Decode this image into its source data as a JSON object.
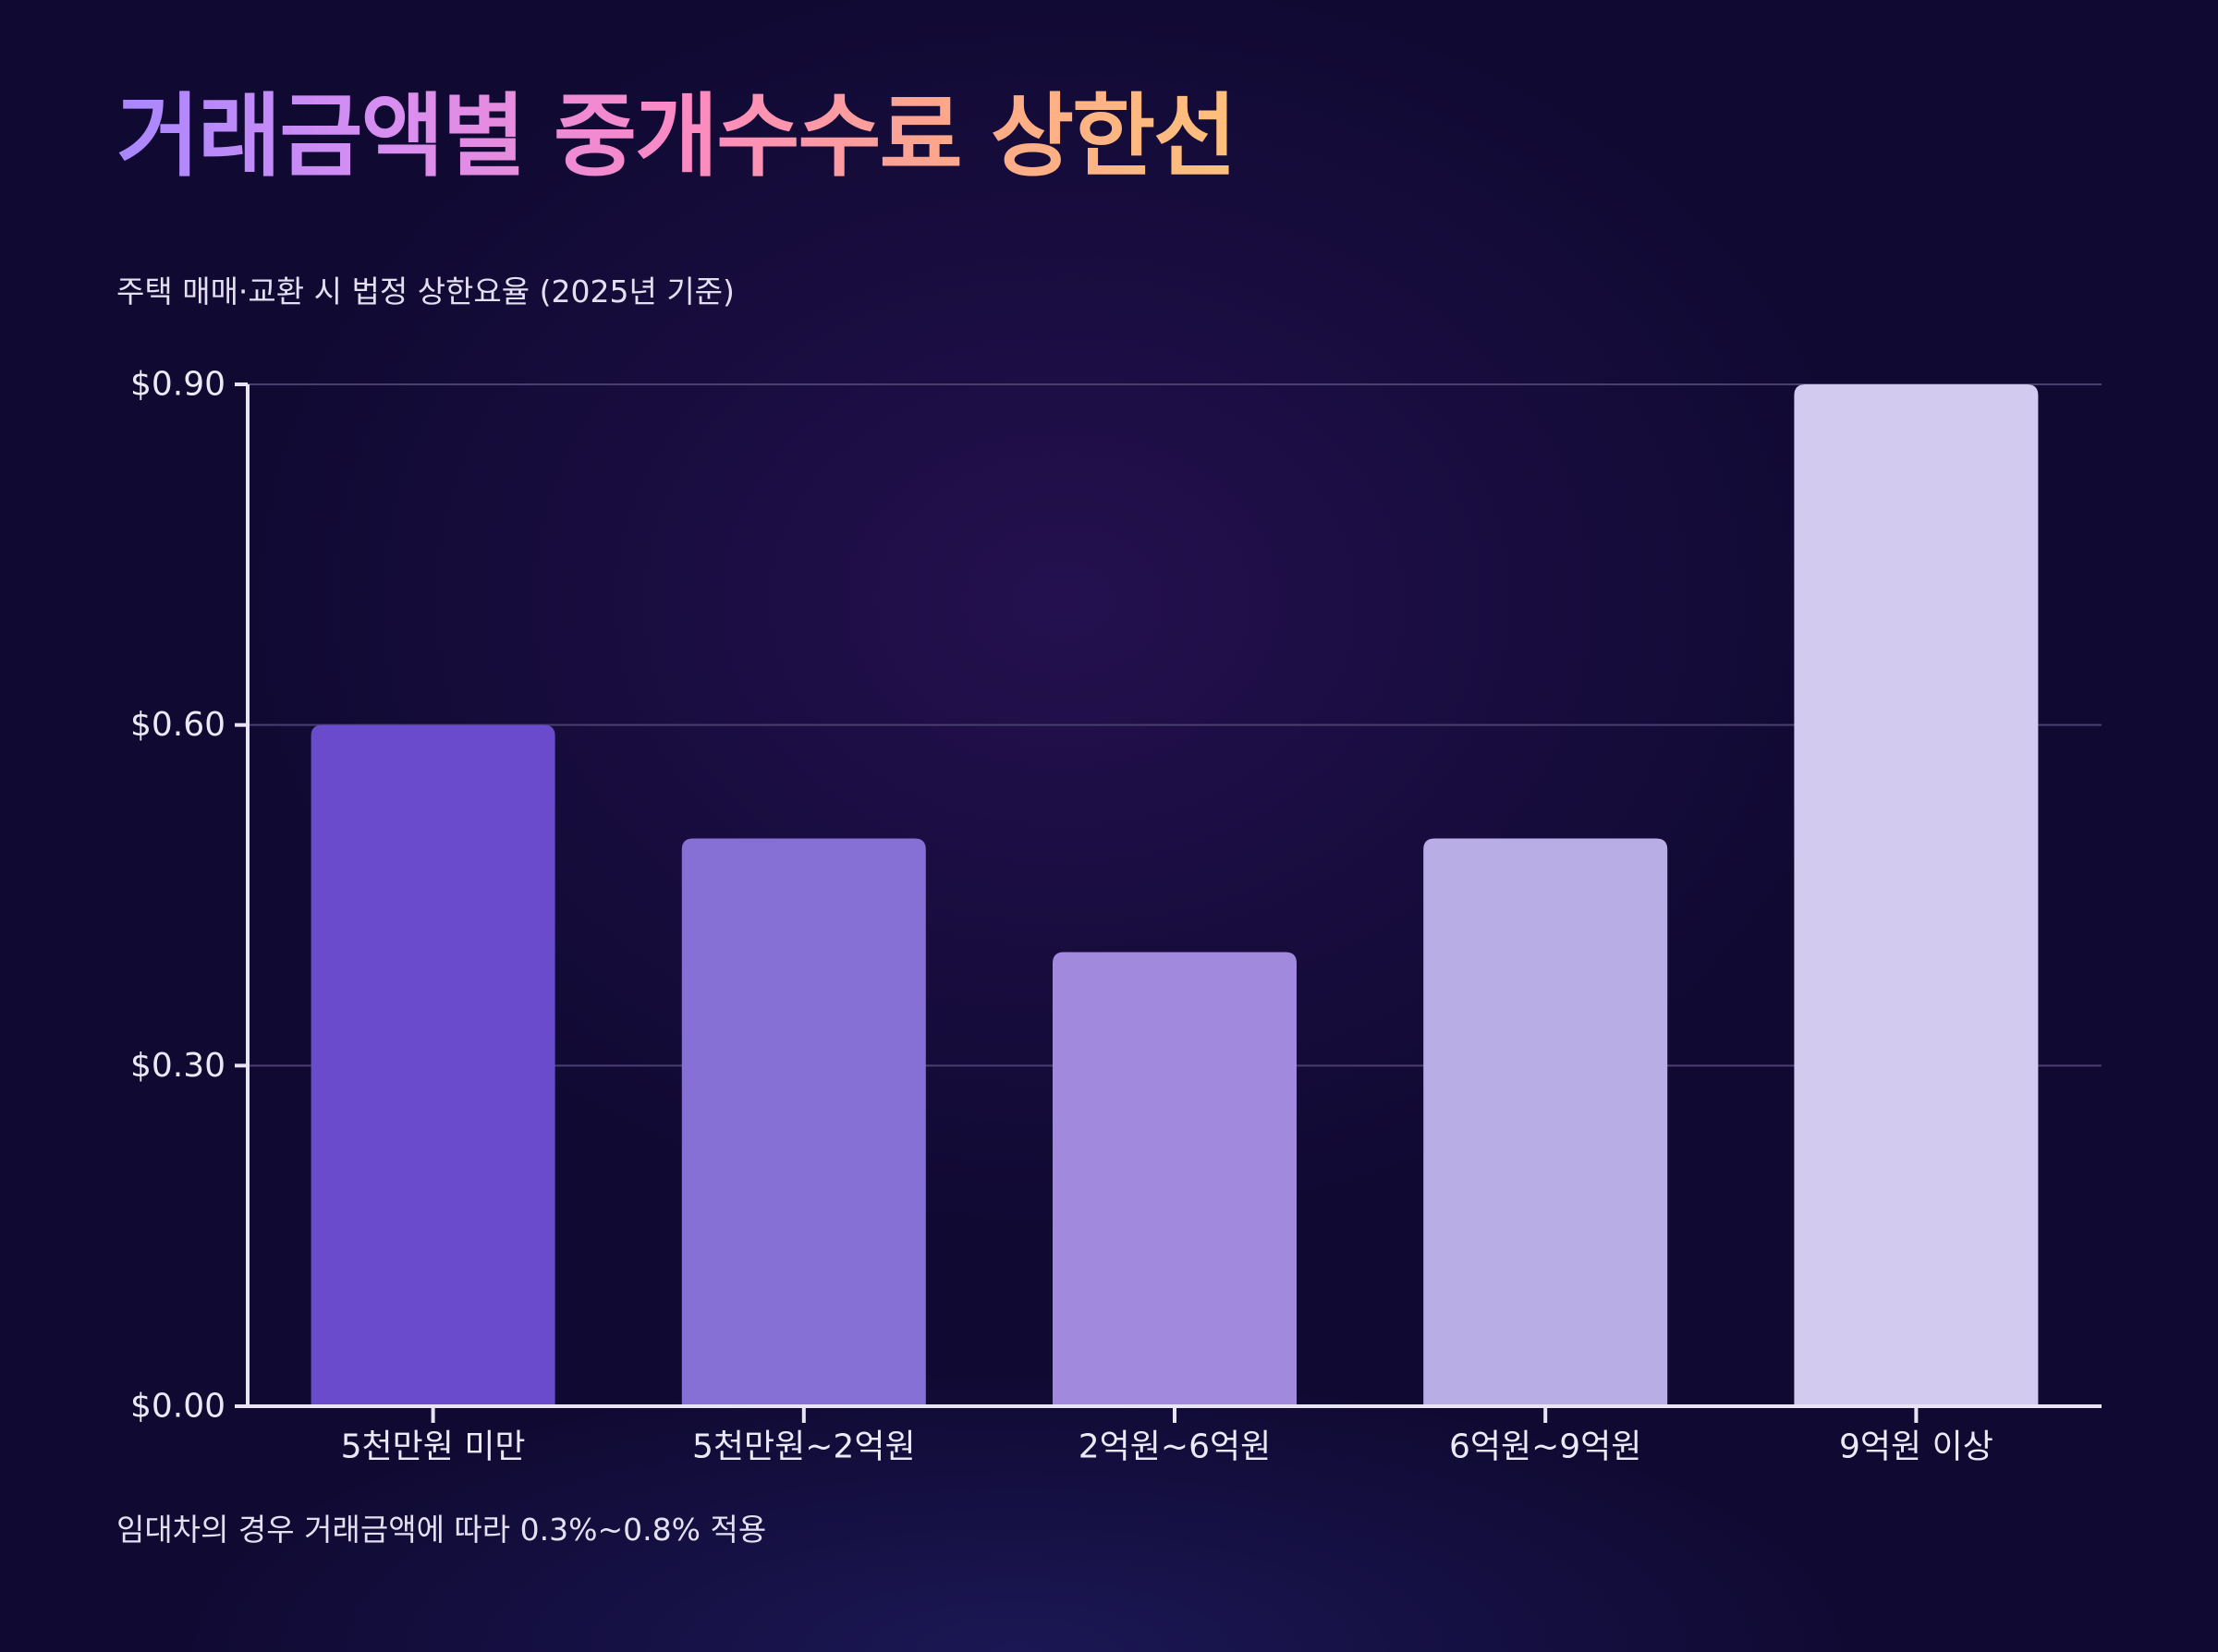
{
  "chart_data": {
    "type": "bar",
    "title": "거래금액별 중개수수료 상한선",
    "subtitle": "주택 매매·교환 시 법정 상한요율 (2025년 기준)",
    "footnote": "임대차의 경우 거래금액에 따라 0.3%~0.8% 적용",
    "categories": [
      "5천만원 미만",
      "5천만원~2억원",
      "2억원~6억원",
      "6억원~9억원",
      "9억원 이상"
    ],
    "values": [
      0.6,
      0.5,
      0.4,
      0.5,
      0.9
    ],
    "ylim": [
      0,
      0.9
    ],
    "yticks": [
      0,
      0.3,
      0.6,
      0.9
    ],
    "ytick_labels": [
      "$0.00",
      "$0.30",
      "$0.60",
      "$0.90"
    ],
    "xlabel": "",
    "ylabel": "",
    "grid": true,
    "colors": [
      "#6a4bcc",
      "#8670d6",
      "#a18ade",
      "#b9ade6",
      "#d3cbef"
    ]
  }
}
